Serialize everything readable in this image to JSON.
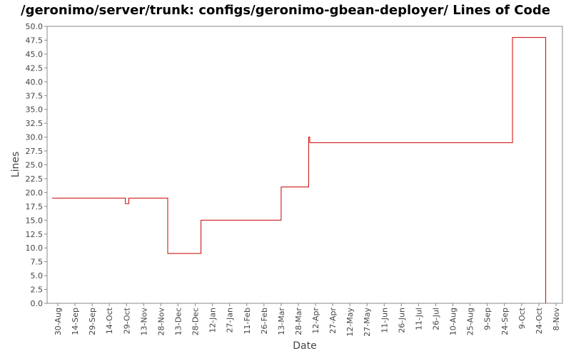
{
  "chart_data": {
    "type": "line",
    "title": "/geronimo/server/trunk: configs/geronimo-gbean-deployer/ Lines of Code",
    "xlabel": "Date",
    "ylabel": "Lines",
    "ylim": [
      0,
      50
    ],
    "y_ticks": [
      "0.0",
      "2.5",
      "5.0",
      "7.5",
      "10.0",
      "12.5",
      "15.0",
      "17.5",
      "20.0",
      "22.5",
      "25.0",
      "27.5",
      "30.0",
      "32.5",
      "35.0",
      "37.5",
      "40.0",
      "42.5",
      "45.0",
      "47.5",
      "50.0"
    ],
    "x_ticks": [
      "30-Aug",
      "14-Sep",
      "29-Sep",
      "14-Oct",
      "29-Oct",
      "13-Nov",
      "28-Nov",
      "13-Dec",
      "28-Dec",
      "12-Jan",
      "27-Jan",
      "11-Feb",
      "26-Feb",
      "13-Mar",
      "28-Mar",
      "12-Apr",
      "27-Apr",
      "12-May",
      "27-May",
      "11-Jun",
      "26-Jun",
      "11-Jul",
      "26-Jul",
      "10-Aug",
      "25-Aug",
      "9-Sep",
      "24-Sep",
      "9-Oct",
      "24-Oct",
      "8-Nov"
    ],
    "line_color": "#cc0000",
    "grid": false,
    "series": [
      {
        "points": [
          {
            "x": "25-Aug",
            "y": 19
          },
          {
            "x": "28-Oct",
            "y": 19
          },
          {
            "x": "28-Oct",
            "y": 18
          },
          {
            "x": "31-Oct",
            "y": 18
          },
          {
            "x": "31-Oct",
            "y": 19
          },
          {
            "x": "4-Dec",
            "y": 19
          },
          {
            "x": "4-Dec",
            "y": 9
          },
          {
            "x": "2-Jan",
            "y": 9
          },
          {
            "x": "2-Jan",
            "y": 15
          },
          {
            "x": "13-Mar",
            "y": 15
          },
          {
            "x": "13-Mar",
            "y": 21
          },
          {
            "x": "6-Apr",
            "y": 21
          },
          {
            "x": "6-Apr",
            "y": 30
          },
          {
            "x": "7-Apr",
            "y": 30
          },
          {
            "x": "7-Apr",
            "y": 29
          },
          {
            "x": "1-Oct",
            "y": 29
          },
          {
            "x": "1-Oct",
            "y": 48
          },
          {
            "x": "30-Oct",
            "y": 48
          },
          {
            "x": "30-Oct",
            "y": 0
          }
        ]
      }
    ]
  }
}
